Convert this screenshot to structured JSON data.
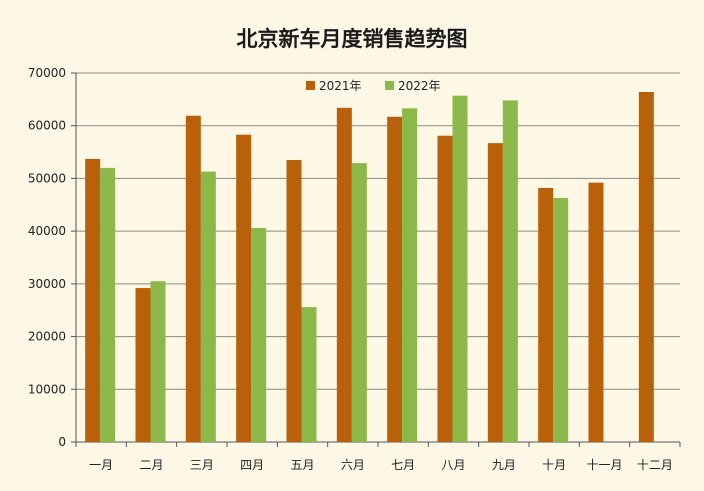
{
  "chart_data": {
    "type": "bar",
    "title": "北京新车月度销售趋势图",
    "categories": [
      "一月",
      "二月",
      "三月",
      "四月",
      "五月",
      "六月",
      "七月",
      "八月",
      "九月",
      "十月",
      "十一月",
      "十二月"
    ],
    "series": [
      {
        "name": "2021年",
        "color": "#b8610a",
        "values": [
          53700,
          29200,
          61900,
          58300,
          53500,
          63400,
          61700,
          58100,
          56700,
          48200,
          49200,
          66400
        ]
      },
      {
        "name": "2022年",
        "color": "#8bb848",
        "values": [
          52000,
          30500,
          51300,
          40600,
          25600,
          52900,
          63300,
          65700,
          64800,
          46300,
          null,
          null
        ]
      }
    ],
    "ylim": [
      0,
      70000
    ],
    "yticks": [
      0,
      10000,
      20000,
      30000,
      40000,
      50000,
      60000,
      70000
    ],
    "grid": true,
    "legend_position": "top-center",
    "xlabel": "",
    "ylabel": ""
  }
}
